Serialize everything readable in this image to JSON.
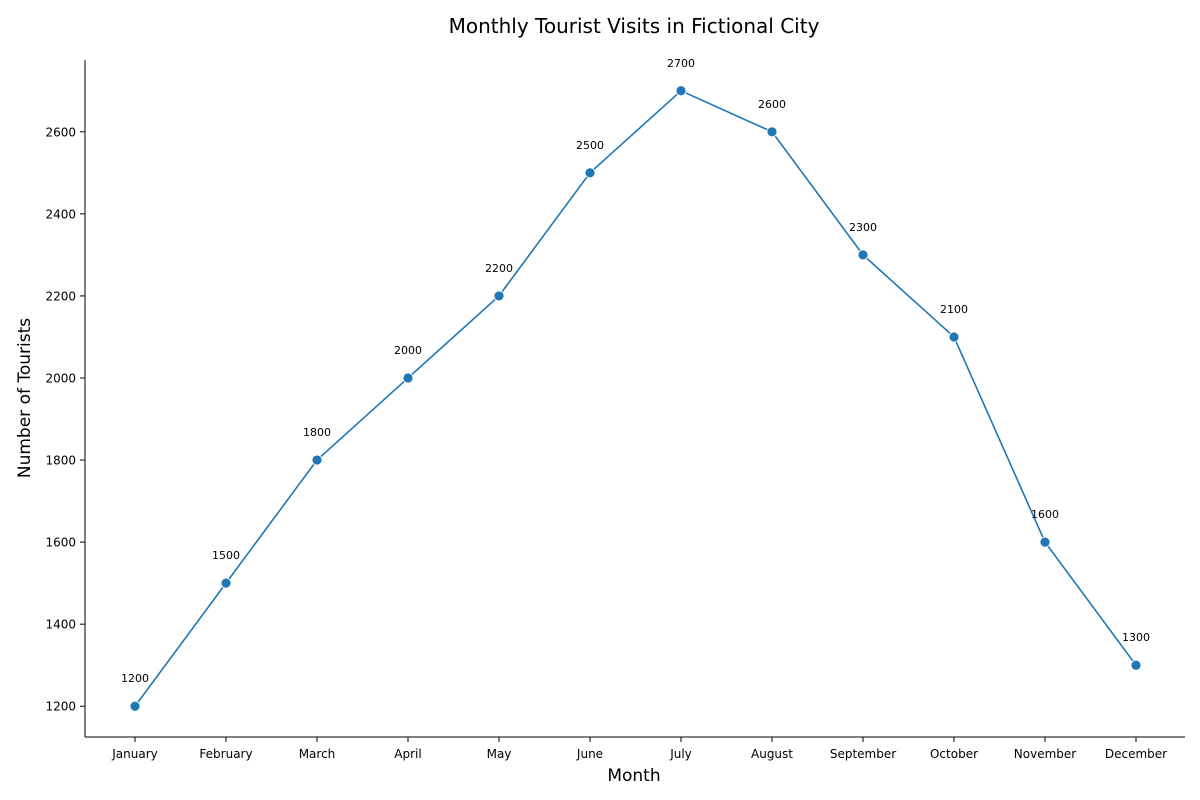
{
  "chart_data": {
    "type": "line",
    "title": "Monthly Tourist Visits in Fictional City",
    "xlabel": "Month",
    "ylabel": "Number of Tourists",
    "categories": [
      "January",
      "February",
      "March",
      "April",
      "May",
      "June",
      "July",
      "August",
      "September",
      "October",
      "November",
      "December"
    ],
    "series": [
      {
        "values": [
          1200,
          1500,
          1800,
          2000,
          2200,
          2500,
          2700,
          2600,
          2300,
          2100,
          1600,
          1300
        ]
      }
    ],
    "data_labels": [
      "1200",
      "1500",
      "1800",
      "2000",
      "2200",
      "2500",
      "2700",
      "2600",
      "2300",
      "2100",
      "1600",
      "1300"
    ],
    "yticks": [
      1200,
      1400,
      1600,
      1800,
      2000,
      2200,
      2400,
      2600
    ],
    "ylim": [
      1125,
      2775
    ],
    "grid": false,
    "legend": "none",
    "line_color": "#1f77b4",
    "marker": "circle"
  }
}
